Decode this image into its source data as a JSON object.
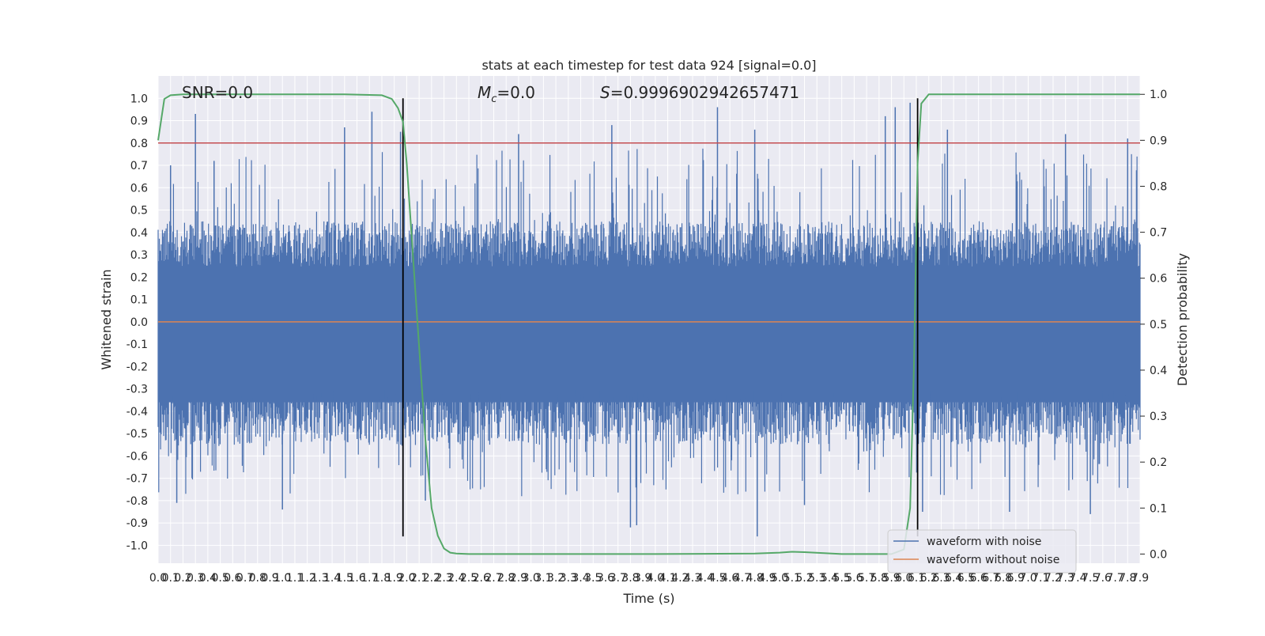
{
  "chart_data": {
    "type": "line",
    "title": "stats at each timestep for test data 924 [signal=0.0]",
    "xlabel": "Time (s)",
    "ylabel": "Whitened strain",
    "y2label": "Detection probability",
    "annotations": {
      "snr": "SNR=0.0",
      "mc_symbol": "M",
      "mc_subscript": "c",
      "mc_value": "=0.0",
      "s_symbol": "S",
      "s_value": "=0.9996902942657471"
    },
    "xlim": [
      0.0,
      7.9
    ],
    "ylim": [
      -1.08,
      1.1
    ],
    "y2lim": [
      -0.02,
      1.04
    ],
    "x_ticks": [
      "0.0",
      "0.1",
      "0.2",
      "0.3",
      "0.4",
      "0.5",
      "0.6",
      "0.7",
      "0.8",
      "0.9",
      "1.0",
      "1.1",
      "1.2",
      "1.3",
      "1.4",
      "1.5",
      "1.6",
      "1.7",
      "1.8",
      "1.9",
      "2.0",
      "2.1",
      "2.2",
      "2.3",
      "2.4",
      "2.5",
      "2.6",
      "2.7",
      "2.8",
      "2.9",
      "3.0",
      "3.1",
      "3.2",
      "3.3",
      "3.4",
      "3.5",
      "3.6",
      "3.7",
      "3.8",
      "3.9",
      "4.0",
      "4.1",
      "4.2",
      "4.3",
      "4.4",
      "4.5",
      "4.6",
      "4.7",
      "4.8",
      "4.9",
      "5.0",
      "5.1",
      "5.2",
      "5.3",
      "5.4",
      "5.5",
      "5.6",
      "5.7",
      "5.8",
      "5.9",
      "6.0",
      "6.1",
      "6.2",
      "6.3",
      "6.4",
      "6.5",
      "6.6",
      "6.7",
      "6.8",
      "6.9",
      "7.0",
      "7.1",
      "7.2",
      "7.3",
      "7.4",
      "7.5",
      "7.6",
      "7.7",
      "7.8",
      "7.9"
    ],
    "y_ticks": [
      "1.0",
      "0.9",
      "0.8",
      "0.7",
      "0.6",
      "0.5",
      "0.4",
      "0.3",
      "0.2",
      "0.1",
      "0.0",
      "-0.1",
      "-0.2",
      "-0.3",
      "-0.4",
      "-0.5",
      "-0.6",
      "-0.7",
      "-0.8",
      "-0.9",
      "-1.0"
    ],
    "y2_ticks": [
      "1.0",
      "0.9",
      "0.8",
      "0.7",
      "0.6",
      "0.5",
      "0.4",
      "0.3",
      "0.2",
      "0.1",
      "0.0"
    ],
    "threshold": {
      "y": 0.8,
      "color": "#c44e52"
    },
    "vlines": {
      "x": [
        1.97,
        6.11
      ],
      "y_from": -0.96,
      "y_to": 1.0,
      "color": "#000000"
    },
    "series": [
      {
        "name": "waveform with noise",
        "color": "#4c72b0",
        "axis": "left",
        "envelope_typical": [
          0.45,
          -0.55
        ],
        "spikes": [
          {
            "x": 0.1,
            "y": 0.7
          },
          {
            "x": 0.3,
            "y": 0.93
          },
          {
            "x": 0.45,
            "y": 0.72
          },
          {
            "x": 1.5,
            "y": 0.87
          },
          {
            "x": 1.72,
            "y": 0.94
          },
          {
            "x": 1.95,
            "y": 0.85
          },
          {
            "x": 2.9,
            "y": 0.84
          },
          {
            "x": 3.65,
            "y": 0.88
          },
          {
            "x": 4.5,
            "y": 0.96
          },
          {
            "x": 4.8,
            "y": 0.86
          },
          {
            "x": 5.85,
            "y": 0.92
          },
          {
            "x": 5.93,
            "y": 0.96
          },
          {
            "x": 6.05,
            "y": 0.98
          },
          {
            "x": 6.35,
            "y": 0.86
          },
          {
            "x": 7.3,
            "y": 0.84
          },
          {
            "x": 7.8,
            "y": 0.82
          },
          {
            "x": 0.15,
            "y": -0.81
          },
          {
            "x": 1.0,
            "y": -0.84
          },
          {
            "x": 2.15,
            "y": -0.8
          },
          {
            "x": 3.8,
            "y": -0.92
          },
          {
            "x": 3.85,
            "y": -0.91
          },
          {
            "x": 4.82,
            "y": -0.96
          },
          {
            "x": 5.2,
            "y": -0.82
          },
          {
            "x": 6.15,
            "y": -0.85
          },
          {
            "x": 6.85,
            "y": -0.85
          },
          {
            "x": 7.5,
            "y": -0.86
          }
        ]
      },
      {
        "name": "waveform without noise",
        "color": "#dd8452",
        "axis": "left",
        "x": [
          0.0,
          7.9
        ],
        "y": [
          0.0,
          0.0
        ]
      },
      {
        "name": "",
        "color": "#55a868",
        "axis": "right",
        "x": [
          0.0,
          0.05,
          0.1,
          0.2,
          0.5,
          1.0,
          1.5,
          1.8,
          1.88,
          1.93,
          1.97,
          2.0,
          2.05,
          2.1,
          2.15,
          2.2,
          2.25,
          2.3,
          2.35,
          2.4,
          2.5,
          3.0,
          4.0,
          4.8,
          5.0,
          5.1,
          5.2,
          5.5,
          5.85,
          5.9,
          6.0,
          6.05,
          6.08,
          6.11,
          6.14,
          6.2,
          6.3,
          7.0,
          7.9
        ],
        "y": [
          0.9,
          0.99,
          0.998,
          1.0,
          1.0,
          1.0,
          1.0,
          0.998,
          0.99,
          0.97,
          0.94,
          0.85,
          0.65,
          0.45,
          0.25,
          0.1,
          0.04,
          0.012,
          0.003,
          0.001,
          0.0,
          0.0,
          0.0,
          0.001,
          0.003,
          0.005,
          0.004,
          0.0,
          0.0,
          0.0,
          0.01,
          0.1,
          0.4,
          0.85,
          0.98,
          1.0,
          1.0,
          1.0,
          1.0
        ]
      }
    ],
    "legend": {
      "position": "lower-right",
      "entries": [
        "waveform with noise",
        "waveform without noise"
      ]
    },
    "colors": {
      "plot_background": "#eaeaf2",
      "grid": "#ffffff",
      "text": "#262626"
    }
  }
}
